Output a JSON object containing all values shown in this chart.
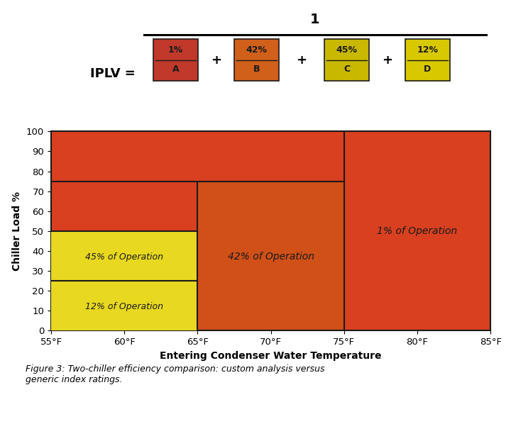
{
  "title_formula": "IPLV =",
  "formula_numerator": "1",
  "box_A_color": "#c0392b",
  "box_B_color": "#d0601a",
  "box_C_color": "#c8b800",
  "box_D_color": "#d8c800",
  "percents": [
    "1%",
    "42%",
    "45%",
    "12%"
  ],
  "letters": [
    "A",
    "B",
    "C",
    "D"
  ],
  "background_color": "#d84020",
  "region_42_color": "#d05018",
  "yellow_color": "#e8d820",
  "xlabel": "Entering Condenser Water Temperature",
  "ylabel": "Chiller Load %",
  "xticks": [
    55,
    60,
    65,
    70,
    75,
    80,
    85
  ],
  "xtick_labels": [
    "55°F",
    "60°F",
    "65°F",
    "70°F",
    "75°F",
    "80°F",
    "85°F"
  ],
  "yticks": [
    0,
    10,
    20,
    30,
    40,
    50,
    60,
    70,
    80,
    90,
    100
  ],
  "xlim": [
    55,
    85
  ],
  "ylim": [
    0,
    100
  ],
  "label_1pct": "1% of Operation",
  "label_42pct": "42% of Operation",
  "label_45pct": "45% of Operation",
  "label_12pct": "12% of Operation",
  "caption": "Figure 3: Two-chiller efficiency comparison: custom analysis versus\ngeneric index ratings.",
  "border_color": "#1a1a1a",
  "text_color": "#1a1a1a"
}
